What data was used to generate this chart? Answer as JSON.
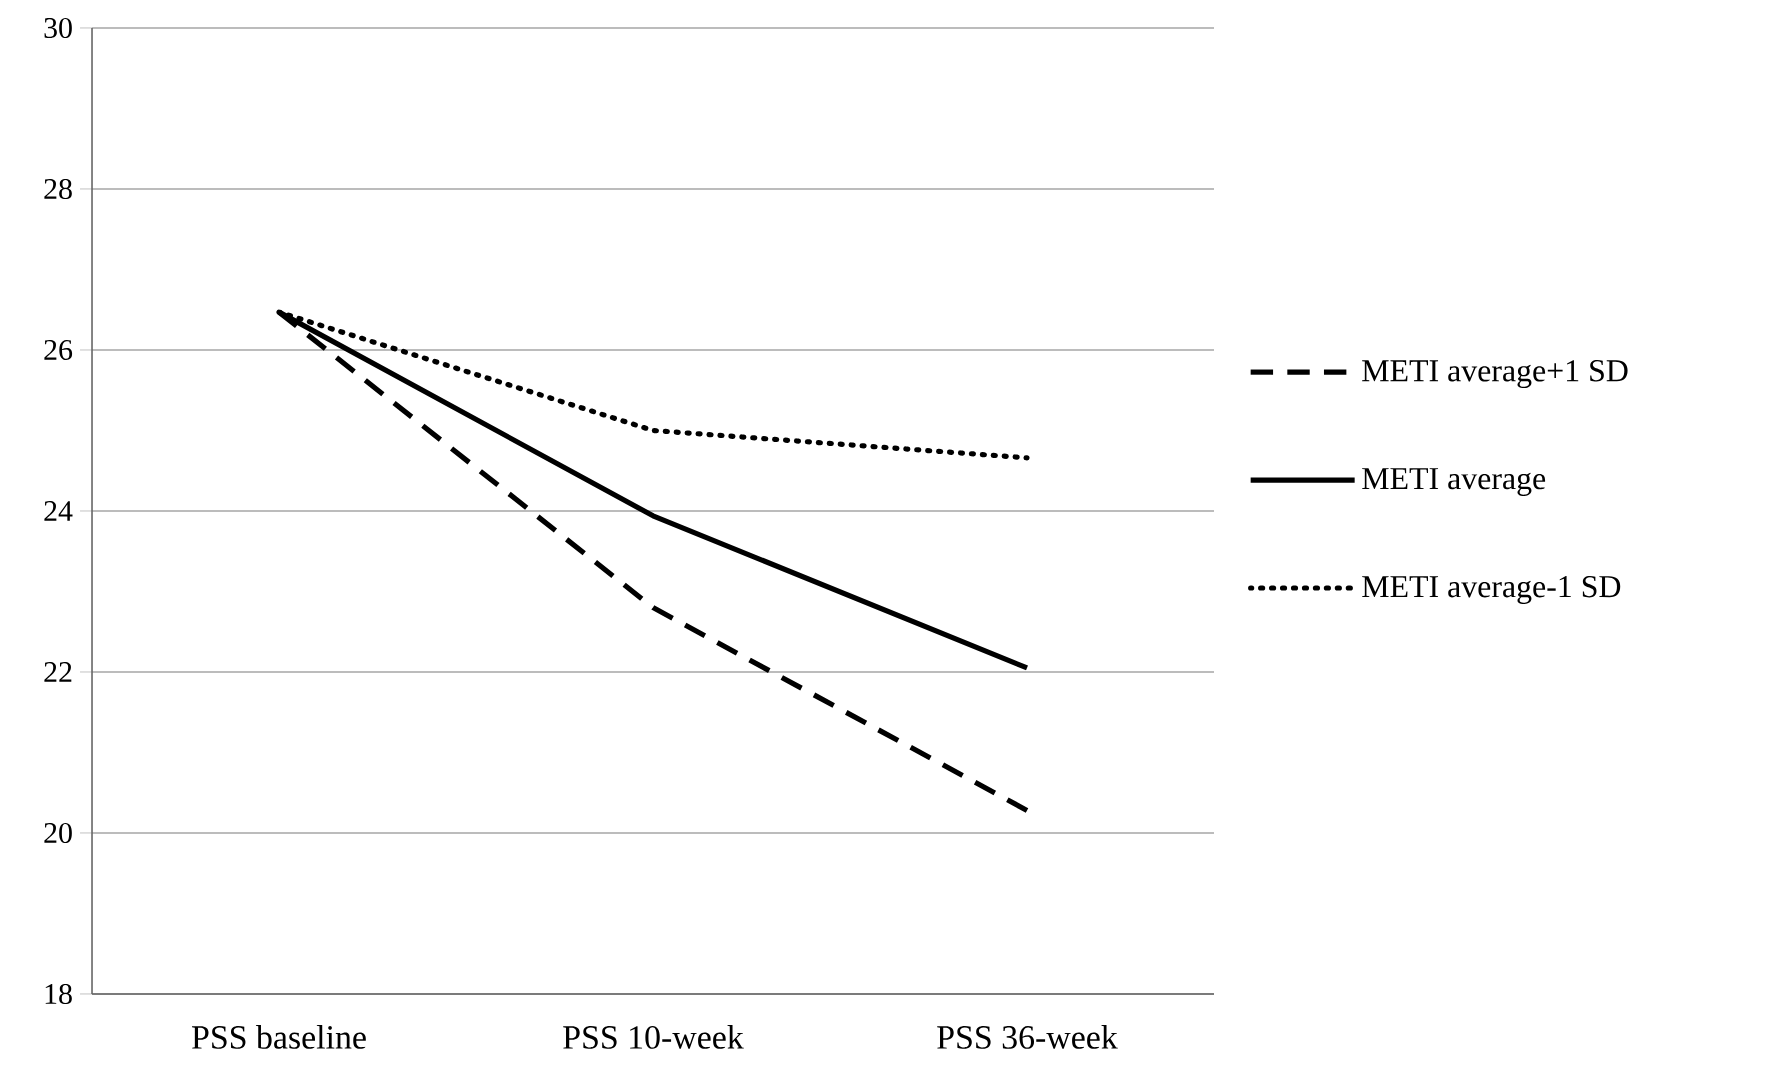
{
  "chart_data": {
    "type": "line",
    "categories": [
      "PSS baseline",
      "PSS 10-week",
      "PSS 36-week"
    ],
    "series": [
      {
        "name": "METI average+1 SD",
        "color": "#000000",
        "line_style": "dashed",
        "values": [
          26.47,
          22.8,
          20.28
        ]
      },
      {
        "name": "METI average",
        "color": "#000000",
        "line_style": "solid",
        "values": [
          26.47,
          23.94,
          22.05
        ]
      },
      {
        "name": "METI average-1 SD",
        "color": "#000000",
        "line_style": "dotted",
        "values": [
          26.47,
          25.0,
          24.66
        ]
      }
    ],
    "ylim": [
      18,
      30
    ],
    "yticks": [
      18,
      20,
      22,
      24,
      26,
      28,
      30
    ],
    "grid": "y",
    "legend": "right",
    "marker": "none"
  }
}
